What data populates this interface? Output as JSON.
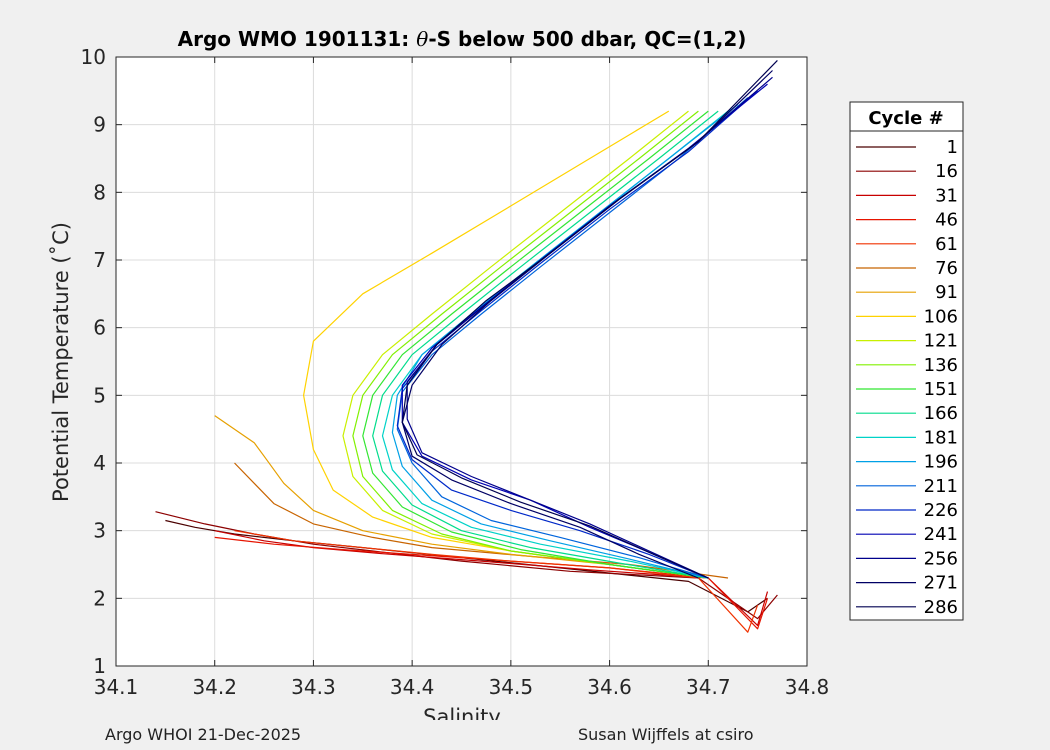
{
  "chart_data": {
    "type": "line",
    "title_prefix": "Argo WMO 1901131: ",
    "title_theta": "θ",
    "title_suffix": "-S below 500 dbar,  QC=(1,2)",
    "xlabel": "Salinity",
    "ylabel": "Potential Temperature (˚C)",
    "xlim": [
      34.1,
      34.8
    ],
    "ylim": [
      1,
      10
    ],
    "xticks": [
      "34.1",
      "34.2",
      "34.3",
      "34.4",
      "34.5",
      "34.6",
      "34.7",
      "34.8"
    ],
    "yticks": [
      "1",
      "2",
      "3",
      "4",
      "5",
      "6",
      "7",
      "8",
      "9",
      "10"
    ],
    "grid": true,
    "legend_title": "Cycle #",
    "legend_position": "outside-right",
    "series": [
      {
        "name": "1",
        "color": "#4a0000",
        "x": [
          34.76,
          34.74,
          34.68,
          34.55,
          34.45,
          34.35,
          34.28,
          34.22,
          34.18,
          34.15
        ],
        "y": [
          2.0,
          1.8,
          2.25,
          2.45,
          2.6,
          2.75,
          2.85,
          2.95,
          3.05,
          3.15
        ]
      },
      {
        "name": "16",
        "color": "#8c0000",
        "x": [
          34.77,
          34.75,
          34.69,
          34.56,
          34.45,
          34.36,
          34.3,
          34.24,
          34.19,
          34.14
        ],
        "y": [
          2.05,
          1.7,
          2.3,
          2.4,
          2.55,
          2.7,
          2.8,
          2.95,
          3.1,
          3.28
        ]
      },
      {
        "name": "31",
        "color": "#c80000",
        "x": [
          34.76,
          34.75,
          34.7,
          34.58,
          34.47,
          34.37,
          34.3,
          34.25,
          34.2
        ],
        "y": [
          2.1,
          1.6,
          2.3,
          2.42,
          2.55,
          2.66,
          2.75,
          2.85,
          3.0
        ]
      },
      {
        "name": "46",
        "color": "#e61400",
        "x": [
          34.76,
          34.75,
          34.7,
          34.6,
          34.5,
          34.4,
          34.33,
          34.26,
          34.2
        ],
        "y": [
          2.0,
          1.55,
          2.3,
          2.45,
          2.55,
          2.65,
          2.72,
          2.8,
          2.9
        ]
      },
      {
        "name": "61",
        "color": "#f03200",
        "x": [
          34.75,
          34.74,
          34.69,
          34.6,
          34.5,
          34.42,
          34.35,
          34.28,
          34.22
        ],
        "y": [
          1.9,
          1.5,
          2.3,
          2.45,
          2.55,
          2.65,
          2.75,
          2.85,
          3.0
        ]
      },
      {
        "name": "76",
        "color": "#c86400",
        "x": [
          34.72,
          34.62,
          34.52,
          34.42,
          34.36,
          34.3,
          34.26,
          34.24,
          34.22
        ],
        "y": [
          2.3,
          2.5,
          2.62,
          2.75,
          2.9,
          3.1,
          3.4,
          3.7,
          4.0
        ]
      },
      {
        "name": "91",
        "color": "#e6a000",
        "x": [
          34.7,
          34.6,
          34.5,
          34.42,
          34.35,
          34.3,
          34.27,
          34.25,
          34.24,
          34.2
        ],
        "y": [
          2.3,
          2.5,
          2.65,
          2.8,
          3.0,
          3.3,
          3.7,
          4.1,
          4.3,
          4.7
        ]
      },
      {
        "name": "106",
        "color": "#ffd200",
        "x": [
          34.7,
          34.6,
          34.5,
          34.42,
          34.36,
          34.32,
          34.3,
          34.29,
          34.3,
          34.35,
          34.42,
          34.5,
          34.58,
          34.66
        ],
        "y": [
          2.3,
          2.5,
          2.7,
          2.9,
          3.2,
          3.6,
          4.2,
          5.0,
          5.8,
          6.5,
          7.1,
          7.8,
          8.5,
          9.2
        ]
      },
      {
        "name": "121",
        "color": "#c8f000",
        "x": [
          34.7,
          34.6,
          34.5,
          34.42,
          34.37,
          34.34,
          34.33,
          34.34,
          34.37,
          34.42,
          34.48,
          34.55,
          34.62,
          34.68
        ],
        "y": [
          2.3,
          2.5,
          2.7,
          2.95,
          3.3,
          3.8,
          4.4,
          5.0,
          5.6,
          6.2,
          6.9,
          7.7,
          8.5,
          9.2
        ]
      },
      {
        "name": "136",
        "color": "#82f000",
        "x": [
          34.7,
          34.6,
          34.5,
          34.43,
          34.38,
          34.35,
          34.34,
          34.35,
          34.38,
          34.43,
          34.49,
          34.56,
          34.63,
          34.69
        ],
        "y": [
          2.3,
          2.5,
          2.7,
          2.95,
          3.3,
          3.8,
          4.4,
          5.0,
          5.6,
          6.2,
          6.9,
          7.7,
          8.5,
          9.2
        ]
      },
      {
        "name": "151",
        "color": "#32e632",
        "x": [
          34.7,
          34.6,
          34.51,
          34.44,
          34.39,
          34.36,
          34.35,
          34.36,
          34.39,
          34.44,
          34.5,
          34.57,
          34.64,
          34.7
        ],
        "y": [
          2.3,
          2.5,
          2.72,
          2.98,
          3.35,
          3.85,
          4.4,
          5.0,
          5.6,
          6.2,
          6.9,
          7.7,
          8.5,
          9.2
        ]
      },
      {
        "name": "166",
        "color": "#00dc8c",
        "x": [
          34.7,
          34.61,
          34.52,
          34.45,
          34.4,
          34.37,
          34.36,
          34.37,
          34.4,
          34.45,
          34.51,
          34.58,
          34.65,
          34.71
        ],
        "y": [
          2.3,
          2.52,
          2.75,
          3.0,
          3.38,
          3.88,
          4.4,
          5.0,
          5.6,
          6.2,
          6.9,
          7.7,
          8.5,
          9.2
        ]
      },
      {
        "name": "181",
        "color": "#00d2c8",
        "x": [
          34.7,
          34.62,
          34.53,
          34.46,
          34.41,
          34.38,
          34.37,
          34.38,
          34.41,
          34.46,
          34.52,
          34.59,
          34.66,
          34.72
        ],
        "y": [
          2.3,
          2.55,
          2.8,
          3.05,
          3.4,
          3.9,
          4.4,
          5.0,
          5.6,
          6.2,
          6.9,
          7.7,
          8.5,
          9.2
        ]
      },
      {
        "name": "196",
        "color": "#00a0e6",
        "x": [
          34.7,
          34.62,
          34.54,
          34.47,
          34.42,
          34.39,
          34.38,
          34.385,
          34.41,
          34.46,
          34.52,
          34.59,
          34.66,
          34.73
        ],
        "y": [
          2.3,
          2.58,
          2.85,
          3.1,
          3.45,
          3.95,
          4.45,
          5.0,
          5.6,
          6.2,
          6.9,
          7.7,
          8.5,
          9.3
        ]
      },
      {
        "name": "211",
        "color": "#0064dc",
        "x": [
          34.7,
          34.63,
          34.55,
          34.48,
          34.43,
          34.4,
          34.385,
          34.39,
          34.42,
          34.47,
          34.53,
          34.6,
          34.67,
          34.74
        ],
        "y": [
          2.3,
          2.6,
          2.9,
          3.15,
          3.5,
          4.0,
          4.5,
          5.05,
          5.6,
          6.2,
          6.9,
          7.7,
          8.5,
          9.4
        ]
      },
      {
        "name": "226",
        "color": "#0028c8",
        "x": [
          34.7,
          34.64,
          34.57,
          34.5,
          34.44,
          34.4,
          34.385,
          34.39,
          34.42,
          34.47,
          34.53,
          34.6,
          34.68,
          34.75
        ],
        "y": [
          2.3,
          2.65,
          3.0,
          3.3,
          3.6,
          4.05,
          4.55,
          5.1,
          5.65,
          6.25,
          6.95,
          7.75,
          8.6,
          9.5
        ]
      },
      {
        "name": "241",
        "color": "#0000b4",
        "x": [
          34.7,
          34.64,
          34.58,
          34.52,
          34.46,
          34.41,
          34.39,
          34.39,
          34.42,
          34.47,
          34.53,
          34.6,
          34.68,
          34.76
        ],
        "y": [
          2.3,
          2.68,
          3.05,
          3.45,
          3.75,
          4.1,
          4.6,
          5.15,
          5.7,
          6.3,
          7.0,
          7.8,
          8.65,
          9.6
        ]
      },
      {
        "name": "256",
        "color": "#00008c",
        "x": [
          34.7,
          34.64,
          34.58,
          34.52,
          34.46,
          34.41,
          34.395,
          34.395,
          34.425,
          34.475,
          34.535,
          34.605,
          34.685,
          34.765
        ],
        "y": [
          2.3,
          2.7,
          3.1,
          3.45,
          3.8,
          4.15,
          4.65,
          5.2,
          5.75,
          6.35,
          7.05,
          7.85,
          8.7,
          9.7
        ]
      },
      {
        "name": "271",
        "color": "#000064",
        "x": [
          34.69,
          34.63,
          34.57,
          34.5,
          34.44,
          34.4,
          34.39,
          34.4,
          34.43,
          34.48,
          34.54,
          34.61,
          34.69,
          34.765
        ],
        "y": [
          2.3,
          2.65,
          3.05,
          3.4,
          3.75,
          4.1,
          4.6,
          5.15,
          5.75,
          6.4,
          7.1,
          7.9,
          8.75,
          9.8
        ]
      },
      {
        "name": "286",
        "color": "#000050",
        "x": [
          34.7,
          34.64,
          34.58,
          34.51,
          34.45,
          34.405,
          34.39,
          34.395,
          34.425,
          34.475,
          34.54,
          34.61,
          34.69,
          34.77
        ],
        "y": [
          2.3,
          2.68,
          3.07,
          3.42,
          3.78,
          4.12,
          4.6,
          5.15,
          5.75,
          6.4,
          7.1,
          7.9,
          8.75,
          9.95
        ]
      }
    ]
  },
  "footer": {
    "left": "Argo WHOI 21-Dec-2025",
    "right": "Susan Wijffels at csiro"
  }
}
